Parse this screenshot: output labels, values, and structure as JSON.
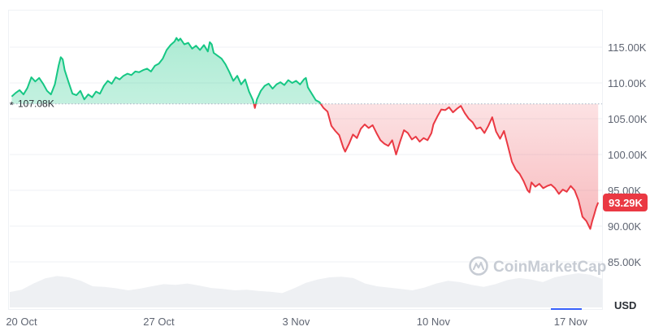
{
  "chart_data": {
    "type": "line",
    "currency": "USD",
    "baseline": {
      "value": 107080,
      "label": "107.08K"
    },
    "last_price": {
      "value": 93290,
      "label": "93.29K"
    },
    "ylim": [
      80000,
      120000
    ],
    "y_ticks": [
      {
        "value": 85000,
        "label": "85.00K"
      },
      {
        "value": 90000,
        "label": "90.00K"
      },
      {
        "value": 95000,
        "label": "95.00K"
      },
      {
        "value": 100000,
        "label": "100.00K"
      },
      {
        "value": 105000,
        "label": "105.00K"
      },
      {
        "value": 110000,
        "label": "110.00K"
      },
      {
        "value": 115000,
        "label": "115.00K"
      }
    ],
    "x_ticks": [
      {
        "day": 0,
        "label": "20 Oct"
      },
      {
        "day": 7,
        "label": "27 Oct"
      },
      {
        "day": 14,
        "label": "3 Nov"
      },
      {
        "day": 21,
        "label": "10 Nov"
      },
      {
        "day": 28,
        "label": "17 Nov"
      }
    ],
    "x_range": [
      -0.6,
      29.6
    ],
    "series": [
      {
        "points": [
          [
            -0.5,
            108100
          ],
          [
            -0.3,
            108600
          ],
          [
            -0.1,
            109000
          ],
          [
            0.1,
            108400
          ],
          [
            0.3,
            109300
          ],
          [
            0.5,
            110800
          ],
          [
            0.7,
            110200
          ],
          [
            0.9,
            110700
          ],
          [
            1.1,
            109900
          ],
          [
            1.3,
            108900
          ],
          [
            1.5,
            108400
          ],
          [
            1.7,
            109800
          ],
          [
            1.9,
            112500
          ],
          [
            2.0,
            113600
          ],
          [
            2.1,
            113300
          ],
          [
            2.2,
            111800
          ],
          [
            2.4,
            110100
          ],
          [
            2.6,
            108500
          ],
          [
            2.8,
            108300
          ],
          [
            3.0,
            108900
          ],
          [
            3.2,
            107700
          ],
          [
            3.4,
            108400
          ],
          [
            3.6,
            108000
          ],
          [
            3.8,
            108800
          ],
          [
            4.0,
            108500
          ],
          [
            4.2,
            109600
          ],
          [
            4.4,
            110300
          ],
          [
            4.6,
            109900
          ],
          [
            4.8,
            110800
          ],
          [
            5.0,
            110500
          ],
          [
            5.2,
            111000
          ],
          [
            5.4,
            111300
          ],
          [
            5.6,
            111100
          ],
          [
            5.8,
            111600
          ],
          [
            6.0,
            111500
          ],
          [
            6.2,
            111800
          ],
          [
            6.4,
            112000
          ],
          [
            6.6,
            111600
          ],
          [
            6.8,
            112400
          ],
          [
            7.0,
            112700
          ],
          [
            7.2,
            113400
          ],
          [
            7.4,
            114600
          ],
          [
            7.6,
            115300
          ],
          [
            7.8,
            115800
          ],
          [
            7.9,
            116300
          ],
          [
            8.0,
            115900
          ],
          [
            8.1,
            116200
          ],
          [
            8.3,
            115400
          ],
          [
            8.5,
            115600
          ],
          [
            8.7,
            114800
          ],
          [
            8.9,
            115200
          ],
          [
            9.1,
            114600
          ],
          [
            9.3,
            115300
          ],
          [
            9.5,
            114400
          ],
          [
            9.6,
            115700
          ],
          [
            9.7,
            115400
          ],
          [
            9.8,
            114200
          ],
          [
            10.0,
            113800
          ],
          [
            10.2,
            113400
          ],
          [
            10.4,
            112600
          ],
          [
            10.6,
            111500
          ],
          [
            10.8,
            110300
          ],
          [
            11.0,
            111000
          ],
          [
            11.2,
            109800
          ],
          [
            11.4,
            110500
          ],
          [
            11.6,
            108800
          ],
          [
            11.8,
            107600
          ],
          [
            11.9,
            106500
          ],
          [
            12.0,
            107700
          ],
          [
            12.2,
            108900
          ],
          [
            12.4,
            109600
          ],
          [
            12.6,
            109900
          ],
          [
            12.8,
            109200
          ],
          [
            13.0,
            109800
          ],
          [
            13.2,
            110100
          ],
          [
            13.4,
            109700
          ],
          [
            13.6,
            110400
          ],
          [
            13.8,
            110000
          ],
          [
            14.0,
            110300
          ],
          [
            14.2,
            109800
          ],
          [
            14.4,
            110500
          ],
          [
            14.5,
            110700
          ],
          [
            14.6,
            109400
          ],
          [
            14.8,
            108500
          ],
          [
            15.0,
            107600
          ],
          [
            15.2,
            107300
          ],
          [
            15.4,
            106500
          ],
          [
            15.6,
            106000
          ],
          [
            15.8,
            104000
          ],
          [
            16.0,
            103300
          ],
          [
            16.2,
            102700
          ],
          [
            16.4,
            101000
          ],
          [
            16.5,
            100400
          ],
          [
            16.7,
            101500
          ],
          [
            16.9,
            102800
          ],
          [
            17.1,
            102300
          ],
          [
            17.3,
            103600
          ],
          [
            17.5,
            104200
          ],
          [
            17.7,
            103700
          ],
          [
            17.9,
            104100
          ],
          [
            18.1,
            103000
          ],
          [
            18.3,
            102000
          ],
          [
            18.5,
            101500
          ],
          [
            18.7,
            101200
          ],
          [
            18.9,
            102000
          ],
          [
            19.1,
            100000
          ],
          [
            19.3,
            101800
          ],
          [
            19.5,
            103400
          ],
          [
            19.7,
            103000
          ],
          [
            19.9,
            102100
          ],
          [
            20.1,
            102500
          ],
          [
            20.3,
            101800
          ],
          [
            20.5,
            102300
          ],
          [
            20.7,
            102000
          ],
          [
            20.9,
            103000
          ],
          [
            21.0,
            104200
          ],
          [
            21.2,
            105300
          ],
          [
            21.4,
            106300
          ],
          [
            21.6,
            106200
          ],
          [
            21.8,
            106600
          ],
          [
            22.0,
            105900
          ],
          [
            22.2,
            106400
          ],
          [
            22.4,
            106800
          ],
          [
            22.6,
            105800
          ],
          [
            22.8,
            105000
          ],
          [
            23.0,
            104500
          ],
          [
            23.2,
            103600
          ],
          [
            23.4,
            103800
          ],
          [
            23.6,
            103000
          ],
          [
            23.8,
            104000
          ],
          [
            24.0,
            105200
          ],
          [
            24.2,
            103200
          ],
          [
            24.4,
            102200
          ],
          [
            24.6,
            103300
          ],
          [
            24.8,
            101200
          ],
          [
            25.0,
            99000
          ],
          [
            25.2,
            97900
          ],
          [
            25.4,
            97300
          ],
          [
            25.6,
            96300
          ],
          [
            25.8,
            95000
          ],
          [
            25.9,
            94700
          ],
          [
            26.0,
            96100
          ],
          [
            26.2,
            95500
          ],
          [
            26.4,
            95900
          ],
          [
            26.6,
            95300
          ],
          [
            26.8,
            95600
          ],
          [
            27.0,
            95800
          ],
          [
            27.2,
            95300
          ],
          [
            27.4,
            94500
          ],
          [
            27.6,
            95100
          ],
          [
            27.8,
            94800
          ],
          [
            28.0,
            95600
          ],
          [
            28.2,
            95000
          ],
          [
            28.4,
            93600
          ],
          [
            28.6,
            91300
          ],
          [
            28.8,
            90700
          ],
          [
            29.0,
            89600
          ],
          [
            29.1,
            90700
          ],
          [
            29.2,
            91600
          ],
          [
            29.3,
            92600
          ],
          [
            29.4,
            93290
          ]
        ]
      }
    ],
    "volume": [
      0.45,
      0.52,
      0.7,
      0.85,
      0.92,
      0.88,
      0.78,
      0.62,
      0.6,
      0.56,
      0.5,
      0.55,
      0.62,
      0.68,
      0.66,
      0.7,
      0.64,
      0.57,
      0.54,
      0.5,
      0.52,
      0.48,
      0.46,
      0.42,
      0.56,
      0.72,
      0.82,
      0.88,
      0.9,
      0.86,
      0.7,
      0.62,
      0.58,
      0.54,
      0.5,
      0.58,
      0.7,
      0.78,
      0.74,
      0.66,
      0.6,
      0.68,
      0.8,
      0.86,
      0.82,
      0.74,
      0.88,
      0.95,
      1.0,
      0.96,
      0.84
    ],
    "colors": {
      "up": "#16c784",
      "down": "#ea3943",
      "grid": "#eff2f5"
    }
  },
  "watermark": {
    "text": "CoinMarketCap",
    "icon": "coinmarketcap-logo-icon"
  }
}
